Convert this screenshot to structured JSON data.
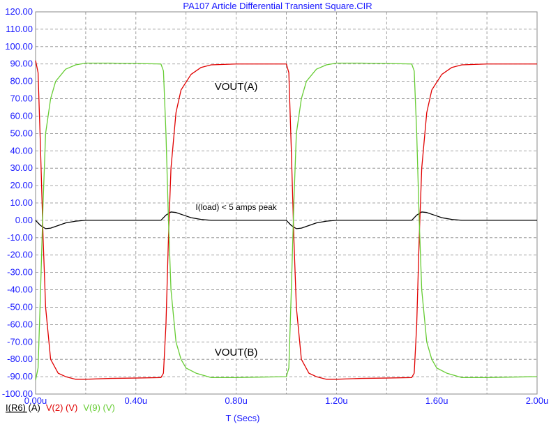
{
  "chart_data": {
    "type": "line",
    "title": "PA107 Article Differential Transient Square.CIR",
    "xlabel": "T (Secs)",
    "ylabel": "",
    "xlim": [
      0,
      2.0
    ],
    "ylim": [
      -100,
      120
    ],
    "x_unit_suffix": "u",
    "x_ticks": [
      0.0,
      0.4,
      0.8,
      1.2,
      1.6,
      2.0
    ],
    "x_tick_labels": [
      "0.00u",
      "0.40u",
      "0.80u",
      "1.20u",
      "1.60u",
      "2.00u"
    ],
    "y_ticks": [
      120,
      110,
      100,
      90,
      80,
      70,
      60,
      50,
      40,
      30,
      20,
      10,
      0,
      -10,
      -20,
      -30,
      -40,
      -50,
      -60,
      -70,
      -80,
      -90,
      -100
    ],
    "y_tick_labels": [
      "120.00",
      "110.00",
      "100.00",
      "90.00",
      "80.00",
      "70.00",
      "60.00",
      "50.00",
      "40.00",
      "30.00",
      "20.00",
      "10.00",
      "0.00",
      "-10.00",
      "-20.00",
      "-30.00",
      "-40.00",
      "-50.00",
      "-60.00",
      "-70.00",
      "-80.00",
      "-90.00",
      "-100.00"
    ],
    "grid": true,
    "legend_position": "bottom-left",
    "series": [
      {
        "name": "I(R6) (A)",
        "color": "#000000",
        "points": [
          [
            0.0,
            0
          ],
          [
            0.02,
            -3
          ],
          [
            0.04,
            -4.8
          ],
          [
            0.06,
            -4.5
          ],
          [
            0.09,
            -3
          ],
          [
            0.12,
            -1.5
          ],
          [
            0.16,
            -0.5
          ],
          [
            0.2,
            0
          ],
          [
            0.5,
            0
          ],
          [
            0.52,
            3
          ],
          [
            0.54,
            4.8
          ],
          [
            0.56,
            4.5
          ],
          [
            0.59,
            3
          ],
          [
            0.62,
            1.5
          ],
          [
            0.66,
            0.5
          ],
          [
            0.7,
            0
          ],
          [
            1.0,
            0
          ],
          [
            1.02,
            -3
          ],
          [
            1.04,
            -4.8
          ],
          [
            1.06,
            -4.5
          ],
          [
            1.09,
            -3
          ],
          [
            1.12,
            -1.5
          ],
          [
            1.16,
            -0.5
          ],
          [
            1.2,
            0
          ],
          [
            1.5,
            0
          ],
          [
            1.52,
            3
          ],
          [
            1.54,
            4.8
          ],
          [
            1.56,
            4.5
          ],
          [
            1.59,
            3
          ],
          [
            1.62,
            1.5
          ],
          [
            1.66,
            0.5
          ],
          [
            1.7,
            0
          ],
          [
            2.0,
            0
          ]
        ]
      },
      {
        "name": "V(2) (V)",
        "color": "#e00000",
        "points": [
          [
            0.0,
            92
          ],
          [
            0.01,
            85
          ],
          [
            0.02,
            40
          ],
          [
            0.03,
            -10
          ],
          [
            0.04,
            -50
          ],
          [
            0.06,
            -80
          ],
          [
            0.09,
            -88
          ],
          [
            0.12,
            -90
          ],
          [
            0.16,
            -91.5
          ],
          [
            0.2,
            -91.5
          ],
          [
            0.3,
            -91
          ],
          [
            0.4,
            -90.8
          ],
          [
            0.5,
            -90.5
          ],
          [
            0.51,
            -88
          ],
          [
            0.52,
            -60
          ],
          [
            0.53,
            -10
          ],
          [
            0.54,
            30
          ],
          [
            0.56,
            62
          ],
          [
            0.58,
            75
          ],
          [
            0.62,
            84
          ],
          [
            0.66,
            88
          ],
          [
            0.7,
            89.5
          ],
          [
            0.8,
            90
          ],
          [
            1.0,
            90
          ],
          [
            1.01,
            85
          ],
          [
            1.02,
            40
          ],
          [
            1.03,
            -10
          ],
          [
            1.04,
            -50
          ],
          [
            1.06,
            -80
          ],
          [
            1.09,
            -88
          ],
          [
            1.12,
            -90
          ],
          [
            1.16,
            -91.5
          ],
          [
            1.2,
            -91.5
          ],
          [
            1.3,
            -91
          ],
          [
            1.4,
            -90.8
          ],
          [
            1.5,
            -90.5
          ],
          [
            1.51,
            -88
          ],
          [
            1.52,
            -60
          ],
          [
            1.53,
            -10
          ],
          [
            1.54,
            30
          ],
          [
            1.56,
            62
          ],
          [
            1.58,
            75
          ],
          [
            1.62,
            84
          ],
          [
            1.66,
            88
          ],
          [
            1.7,
            89.5
          ],
          [
            1.8,
            90
          ],
          [
            2.0,
            90
          ]
        ]
      },
      {
        "name": "V(9) (V)",
        "color": "#66cc33",
        "points": [
          [
            0.0,
            -92
          ],
          [
            0.01,
            -85
          ],
          [
            0.02,
            -40
          ],
          [
            0.03,
            10
          ],
          [
            0.04,
            50
          ],
          [
            0.06,
            70
          ],
          [
            0.08,
            80
          ],
          [
            0.12,
            87
          ],
          [
            0.16,
            89.5
          ],
          [
            0.2,
            90.5
          ],
          [
            0.3,
            90.5
          ],
          [
            0.4,
            90.3
          ],
          [
            0.5,
            90
          ],
          [
            0.51,
            86
          ],
          [
            0.52,
            50
          ],
          [
            0.53,
            0
          ],
          [
            0.54,
            -40
          ],
          [
            0.56,
            -70
          ],
          [
            0.58,
            -80
          ],
          [
            0.6,
            -85
          ],
          [
            0.64,
            -88
          ],
          [
            0.7,
            -90.5
          ],
          [
            0.8,
            -90.5
          ],
          [
            1.0,
            -90
          ],
          [
            1.01,
            -85
          ],
          [
            1.02,
            -40
          ],
          [
            1.03,
            10
          ],
          [
            1.04,
            50
          ],
          [
            1.06,
            70
          ],
          [
            1.08,
            80
          ],
          [
            1.12,
            87
          ],
          [
            1.16,
            89.5
          ],
          [
            1.2,
            90.5
          ],
          [
            1.3,
            90.5
          ],
          [
            1.4,
            90.3
          ],
          [
            1.5,
            90
          ],
          [
            1.51,
            86
          ],
          [
            1.52,
            50
          ],
          [
            1.53,
            0
          ],
          [
            1.54,
            -40
          ],
          [
            1.56,
            -70
          ],
          [
            1.58,
            -80
          ],
          [
            1.6,
            -85
          ],
          [
            1.64,
            -88
          ],
          [
            1.7,
            -90.5
          ],
          [
            1.8,
            -90.5
          ],
          [
            2.0,
            -90
          ]
        ]
      }
    ],
    "annotations": [
      {
        "text": "VOUT(A)",
        "x": 0.8,
        "y": 75
      },
      {
        "text": "I(load) < 5 amps peak",
        "x": 0.8,
        "y": 6
      },
      {
        "text": "VOUT(B)",
        "x": 0.8,
        "y": -78
      }
    ]
  }
}
